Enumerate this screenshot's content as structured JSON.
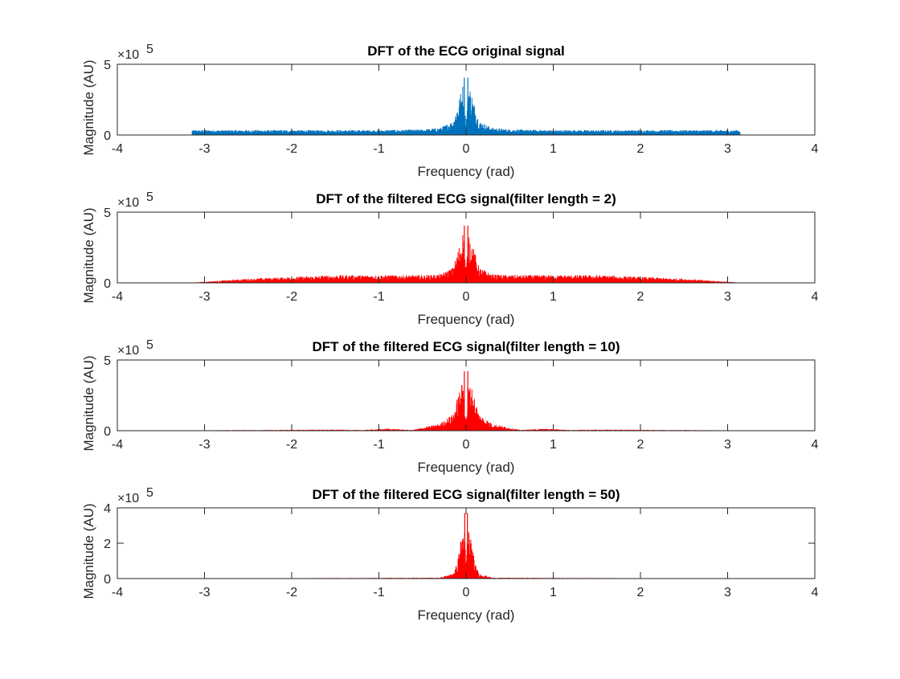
{
  "figure": {
    "background": "#ffffff",
    "axis_color": "#262626"
  },
  "chart_data": [
    {
      "type": "line",
      "title": "DFT of the ECG original signal",
      "xlabel": "Frequency (rad)",
      "ylabel": "Magnitude (AU)",
      "xlim": [
        -4,
        4
      ],
      "ylim": [
        0,
        5
      ],
      "y_multiplier": "×10",
      "y_exponent": "5",
      "xticks": [
        -4,
        -3,
        -2,
        -1,
        0,
        1,
        2,
        3,
        4
      ],
      "yticks": [
        0,
        5
      ],
      "grid": false,
      "series": [
        {
          "color": "#0072BD",
          "x_range": [
            -3.1416,
            3.1416
          ],
          "noise_floor": 0.25,
          "envelope_x": [
            -3.14,
            -2.0,
            -1.0,
            -0.5,
            -0.3,
            -0.15,
            -0.08,
            -0.03,
            0.0,
            0.03,
            0.08,
            0.15,
            0.3,
            0.5,
            1.0,
            2.0,
            3.14
          ],
          "envelope_y": [
            0.35,
            0.35,
            0.35,
            0.4,
            0.5,
            1.0,
            2.6,
            3.8,
            0.9,
            3.8,
            2.6,
            1.0,
            0.5,
            0.4,
            0.35,
            0.35,
            0.35
          ],
          "peaks": [
            {
              "x": -0.02,
              "y": 4.05
            },
            {
              "x": 0.02,
              "y": 4.05
            }
          ]
        }
      ]
    },
    {
      "type": "line",
      "title": "DFT of the filtered ECG signal(filter length = 2)",
      "xlabel": "Frequency (rad)",
      "ylabel": "Magnitude (AU)",
      "xlim": [
        -4,
        4
      ],
      "ylim": [
        0,
        5
      ],
      "y_multiplier": "×10",
      "y_exponent": "5",
      "xticks": [
        -4,
        -3,
        -2,
        -1,
        0,
        1,
        2,
        3,
        4
      ],
      "yticks": [
        0,
        5
      ],
      "grid": false,
      "series": [
        {
          "color": "#FF0000",
          "x_range": [
            -3.1416,
            3.1416
          ],
          "noise_floor": 0.02,
          "envelope_x": [
            -3.14,
            -2.5,
            -1.5,
            -0.5,
            -0.3,
            -0.15,
            -0.08,
            -0.03,
            0.0,
            0.03,
            0.08,
            0.15,
            0.3,
            0.5,
            1.5,
            2.5,
            3.14
          ],
          "envelope_y": [
            0.02,
            0.3,
            0.55,
            0.55,
            0.6,
            1.1,
            2.6,
            3.8,
            0.9,
            3.8,
            2.6,
            1.1,
            0.6,
            0.55,
            0.55,
            0.3,
            0.02
          ],
          "peaks": [
            {
              "x": -0.02,
              "y": 4.05
            },
            {
              "x": 0.02,
              "y": 4.05
            }
          ]
        }
      ]
    },
    {
      "type": "line",
      "title": "DFT of the filtered ECG signal(filter length = 10)",
      "xlabel": "Frequency (rad)",
      "ylabel": "Magnitude (AU)",
      "xlim": [
        -4,
        4
      ],
      "ylim": [
        0,
        5
      ],
      "y_multiplier": "×10",
      "y_exponent": "5",
      "xticks": [
        -4,
        -3,
        -2,
        -1,
        0,
        1,
        2,
        3,
        4
      ],
      "yticks": [
        0,
        5
      ],
      "grid": false,
      "series": [
        {
          "color": "#FF0000",
          "x_range": [
            -3.1416,
            3.1416
          ],
          "noise_floor": 0.0,
          "envelope_x": [
            -3.14,
            -1.5,
            -1.2,
            -0.9,
            -0.62,
            -0.3,
            -0.15,
            -0.08,
            -0.03,
            0.0,
            0.03,
            0.08,
            0.15,
            0.3,
            0.62,
            0.9,
            1.2,
            1.5,
            3.14
          ],
          "envelope_y": [
            0.03,
            0.08,
            0.05,
            0.15,
            0.05,
            0.5,
            1.2,
            2.8,
            3.6,
            0.9,
            3.6,
            2.8,
            1.2,
            0.5,
            0.05,
            0.15,
            0.05,
            0.08,
            0.03
          ],
          "peaks": [
            {
              "x": -0.02,
              "y": 4.2
            },
            {
              "x": 0.02,
              "y": 4.2
            }
          ]
        }
      ]
    },
    {
      "type": "line",
      "title": "DFT of the filtered ECG signal(filter length = 50)",
      "xlabel": "Frequency (rad)",
      "ylabel": "Magnitude (AU)",
      "xlim": [
        -4,
        4
      ],
      "ylim": [
        0,
        4
      ],
      "y_multiplier": "×10",
      "y_exponent": "5",
      "xticks": [
        -4,
        -3,
        -2,
        -1,
        0,
        1,
        2,
        3,
        4
      ],
      "yticks": [
        0,
        2,
        4
      ],
      "grid": false,
      "series": [
        {
          "color": "#FF0000",
          "x_range": [
            -3.1416,
            3.1416
          ],
          "noise_floor": 0.0,
          "envelope_x": [
            -3.14,
            -0.3,
            -0.15,
            -0.1,
            -0.05,
            -0.02,
            0.0,
            0.02,
            0.05,
            0.1,
            0.15,
            0.3,
            3.14
          ],
          "envelope_y": [
            0.01,
            0.05,
            0.3,
            0.9,
            2.6,
            3.2,
            0.6,
            3.2,
            2.6,
            0.9,
            0.3,
            0.05,
            0.01
          ],
          "peaks": [
            {
              "x": -0.015,
              "y": 3.7
            },
            {
              "x": 0.015,
              "y": 3.7
            }
          ]
        }
      ]
    }
  ]
}
